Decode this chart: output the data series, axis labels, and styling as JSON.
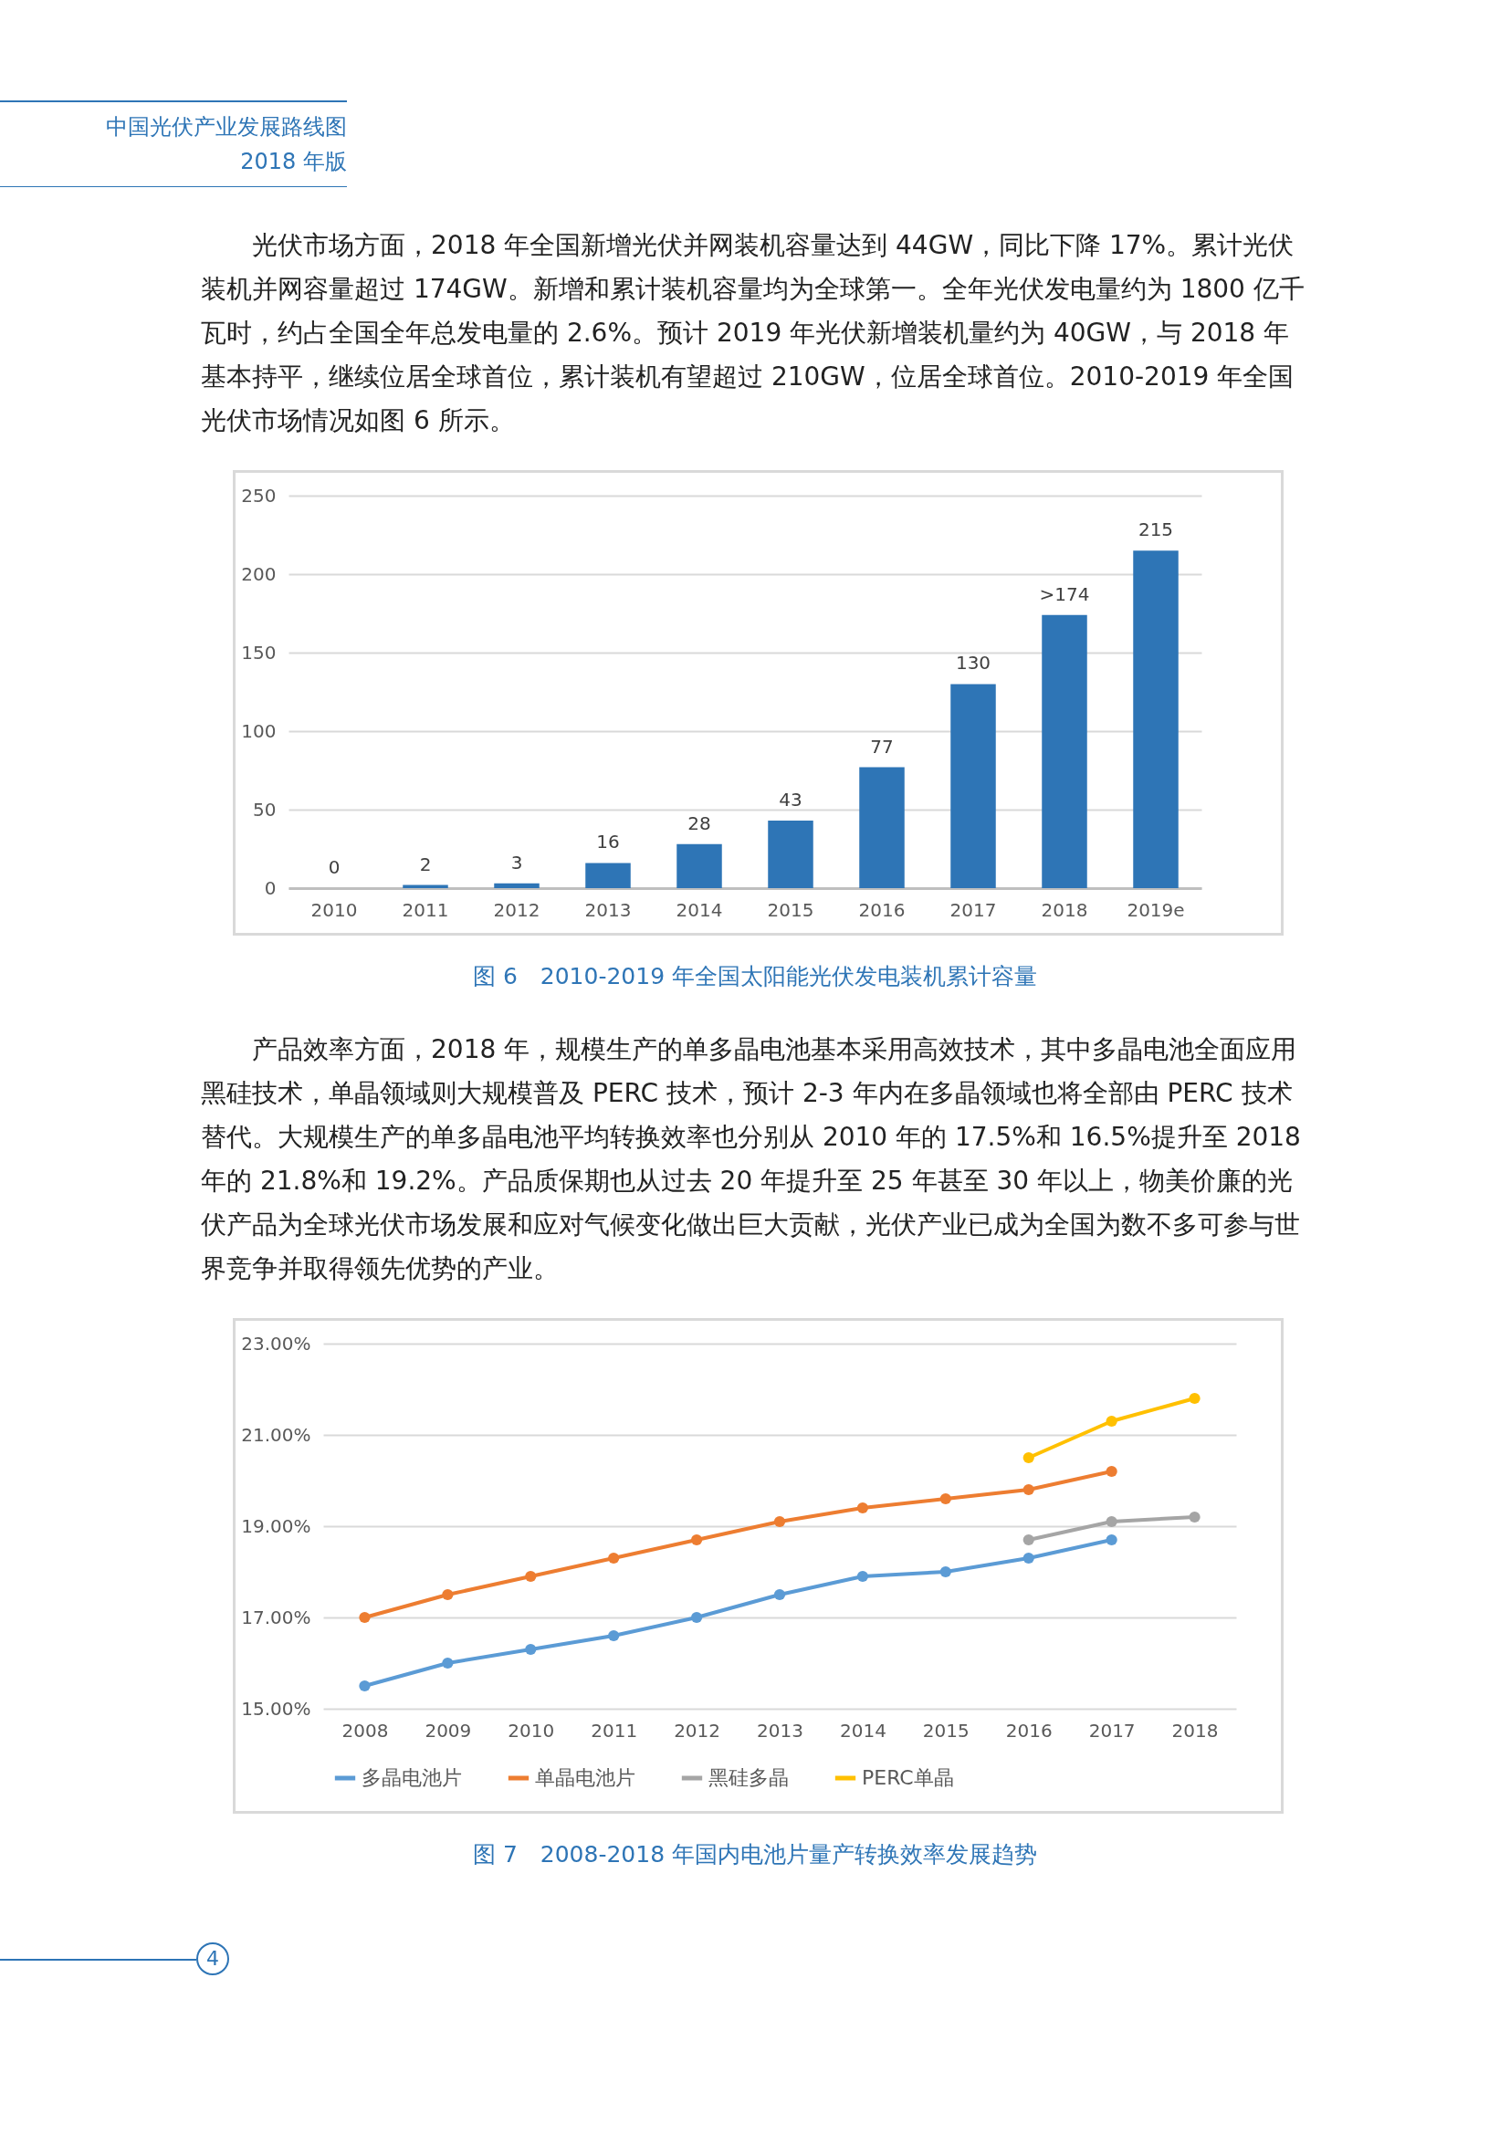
{
  "chart_data": [
    {
      "type": "bar",
      "title": "图 6　2010-2019 年全国太阳能光伏发电装机累计容量",
      "annotations": [
        "中国光伏产业发展路线图",
        "2018 年版",
        "光伏市场方面，2018 年全国新增光伏并网装机容量达到 44GW，同比下降 17%。累计光伏装机并网容量超过 174GW。新增和累计装机容量均为全球第一。全年光伏发电量约为 1800 亿千瓦时，约占全国全年总发电量的 2.6%。预计 2019 年光伏新增装机量约为 40GW，与 2018 年基本持平，继续位居全球首位，累计装机有望超过 210GW，位居全球首位。2010-2019 年全国光伏市场情况如图 6 所示。"
      ],
      "categories": [
        "2010",
        "2011",
        "2012",
        "2013",
        "2014",
        "2015",
        "2016",
        "2017",
        "2018",
        "2019e"
      ],
      "values": [
        0,
        2,
        3,
        16,
        28,
        43,
        77,
        130,
        174,
        215
      ],
      "value_labels": [
        "0",
        "2",
        "3",
        "16",
        "28",
        "43",
        "77",
        "130",
        ">174",
        "215"
      ],
      "color": "#2e75b6",
      "ylim": [
        0,
        250
      ],
      "yticks": [
        0,
        50,
        100,
        150,
        200,
        250
      ],
      "grid": "y"
    },
    {
      "type": "line",
      "title": "图 7　2008-2018 年国内电池片量产转换效率发展趋势",
      "annotations": [
        "产品效率方面，2018 年，规模生产的单多晶电池基本采用高效技术，其中多晶电池全面应用黑硅技术，单晶领域则大规模普及 PERC 技术，预计 2-3 年内在多晶领域也将全部由 PERC 技术替代。大规模生产的单多晶电池平均转换效率也分别从 2010 年的 17.5%和 16.5%提升至 2018 年的 21.8%和 19.2%。产品质保期也从过去 20 年提升至 25 年甚至 30 年以上，物美价廉的光伏产品为全球光伏市场发展和应对气候变化做出巨大贡献，光伏产业已成为全国为数不多可参与世界竞争并取得领先优势的产业。",
        "4"
      ],
      "categories": [
        "2008",
        "2009",
        "2010",
        "2011",
        "2012",
        "2013",
        "2014",
        "2015",
        "2016",
        "2017",
        "2018"
      ],
      "series": [
        {
          "name": "多晶电池片",
          "color": "#5b9bd5",
          "values": [
            15.5,
            16.0,
            16.3,
            16.6,
            17.0,
            17.5,
            17.9,
            18.0,
            18.3,
            18.7,
            null
          ]
        },
        {
          "name": "单晶电池片",
          "color": "#ed7d31",
          "values": [
            17.0,
            17.5,
            17.9,
            18.3,
            18.7,
            19.1,
            19.4,
            19.6,
            19.8,
            20.2,
            null
          ]
        },
        {
          "name": "黑硅多晶",
          "color": "#a5a5a5",
          "values": [
            null,
            null,
            null,
            null,
            null,
            null,
            null,
            null,
            18.7,
            19.1,
            19.2
          ]
        },
        {
          "name": "PERC单晶",
          "color": "#ffc000",
          "values": [
            null,
            null,
            null,
            null,
            null,
            null,
            null,
            null,
            20.5,
            21.3,
            21.8
          ]
        }
      ],
      "ylim": [
        15,
        23
      ],
      "yticks": [
        {
          "value": 15,
          "label": "15.00%"
        },
        {
          "value": 17,
          "label": "17.00%"
        },
        {
          "value": 19,
          "label": "19.00%"
        },
        {
          "value": 21,
          "label": "21.00%"
        },
        {
          "value": 23,
          "label": "23.00%"
        }
      ],
      "grid": "y",
      "legend": "bottom",
      "marker": "circle",
      "line_style": "solid"
    }
  ]
}
